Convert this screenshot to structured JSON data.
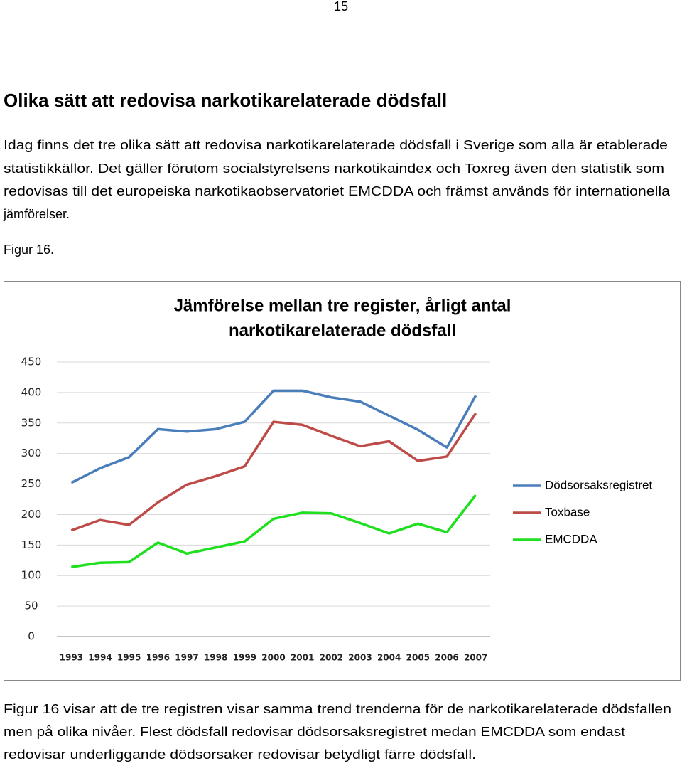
{
  "page_number": "15",
  "heading": "Olika sätt att redovisa narkotikarelaterade dödsfall",
  "intro_lines": [
    "Idag finns det tre olika sätt att redovisa narkotikarelaterade dödsfall i Sverige som alla är etablerade",
    "statistikkällor. Det gäller förutom socialstyrelsens narkotikaindex och Toxreg även den statistik som",
    "redovisas till det europeiska narkotikaobservatoriet EMCDDA och främst används för internationella",
    "jämförelser."
  ],
  "figure_label": "Figur 16.",
  "chart_data": {
    "type": "line",
    "title": [
      "Jämförelse mellan tre register, årligt antal",
      "narkotikarelaterade dödsfall"
    ],
    "categories": [
      "1993",
      "1994",
      "1995",
      "1996",
      "1997",
      "1998",
      "1999",
      "2000",
      "2001",
      "2002",
      "2003",
      "2004",
      "2005",
      "2006",
      "2007"
    ],
    "series": [
      {
        "name": "Dödsorsaksregistret",
        "color": "#4a7ebb",
        "values": [
          252,
          276,
          294,
          340,
          336,
          340,
          352,
          403,
          403,
          392,
          385,
          362,
          339,
          310,
          395
        ]
      },
      {
        "name": "Toxbase",
        "color": "#be4b48",
        "values": [
          174,
          191,
          183,
          220,
          249,
          263,
          279,
          352,
          347,
          329,
          312,
          320,
          288,
          295,
          366
        ]
      },
      {
        "name": "EMCDDA",
        "color": "#1fe01f",
        "values": [
          114,
          121,
          122,
          154,
          136,
          146,
          156,
          193,
          203,
          202,
          186,
          169,
          185,
          171,
          232
        ]
      }
    ],
    "ylim": [
      0,
      450
    ],
    "yticks": [
      0,
      50,
      100,
      150,
      200,
      250,
      300,
      350,
      400,
      450
    ],
    "grid": true,
    "legend": "right"
  },
  "closing_lines": [
    "Figur 16 visar att de tre registren visar samma trend trenderna för de narkotikarelaterade dödsfallen",
    "men på olika nivåer. Flest dödsfall redovisar dödsorsaksregistret medan EMCDDA som endast",
    "redovisar underliggande dödsorsaker redovisar betydligt färre dödsfall."
  ]
}
